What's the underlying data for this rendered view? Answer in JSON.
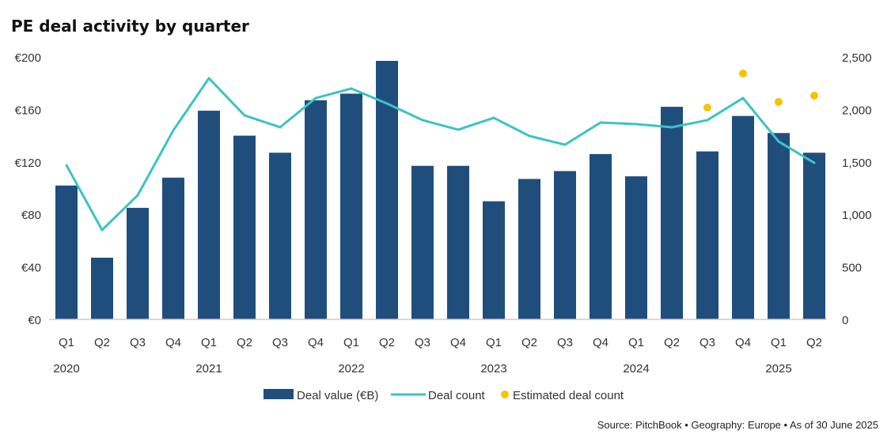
{
  "chart_data": {
    "type": "bar",
    "title": "PE deal activity by quarter",
    "categories": [
      "Q1",
      "Q2",
      "Q3",
      "Q4",
      "Q1",
      "Q2",
      "Q3",
      "Q4",
      "Q1",
      "Q2",
      "Q3",
      "Q4",
      "Q1",
      "Q2",
      "Q3",
      "Q4",
      "Q1",
      "Q2",
      "Q3",
      "Q4",
      "Q1",
      "Q2"
    ],
    "years": [
      "2020",
      "2021",
      "2022",
      "2023",
      "2024",
      "2025"
    ],
    "series": [
      {
        "name": "Deal value (€B)",
        "type": "bar",
        "axis": "left",
        "color": "#1f4e7d",
        "values": [
          102,
          47,
          85,
          108,
          159,
          140,
          127,
          167,
          172,
          197,
          117,
          117,
          90,
          107,
          113,
          126,
          109,
          162,
          128,
          155,
          142,
          127
        ]
      },
      {
        "name": "Deal count",
        "type": "line",
        "axis": "right",
        "color": "#3cc3c6",
        "values": [
          1468,
          851,
          1182,
          1800,
          2297,
          1943,
          1830,
          2108,
          2199,
          2056,
          1898,
          1807,
          1920,
          1747,
          1664,
          1875,
          1860,
          1830,
          1898,
          2108,
          1694,
          1491
        ]
      },
      {
        "name": "Estimated deal count",
        "type": "scatter",
        "axis": "right",
        "color": "#f5c400",
        "values": [
          null,
          null,
          null,
          null,
          null,
          null,
          null,
          null,
          null,
          null,
          null,
          null,
          null,
          null,
          null,
          null,
          null,
          null,
          2018,
          2342,
          2071,
          2131
        ]
      }
    ],
    "y_left": {
      "ylim": [
        0,
        200
      ],
      "ticks": [
        "€0",
        "€40",
        "€80",
        "€120",
        "€160",
        "€200"
      ],
      "tick_values": [
        0,
        40,
        80,
        120,
        160,
        200
      ]
    },
    "y_right": {
      "ylim": [
        0,
        2500
      ],
      "ticks": [
        "0",
        "500",
        "1,000",
        "1,500",
        "2,000",
        "2,500"
      ],
      "tick_values": [
        0,
        500,
        1000,
        1500,
        2000,
        2500
      ]
    },
    "legend": "bottom",
    "grid": false
  },
  "source": "Source: PitchBook  •  Geography: Europe  •  As of 30 June 2025"
}
